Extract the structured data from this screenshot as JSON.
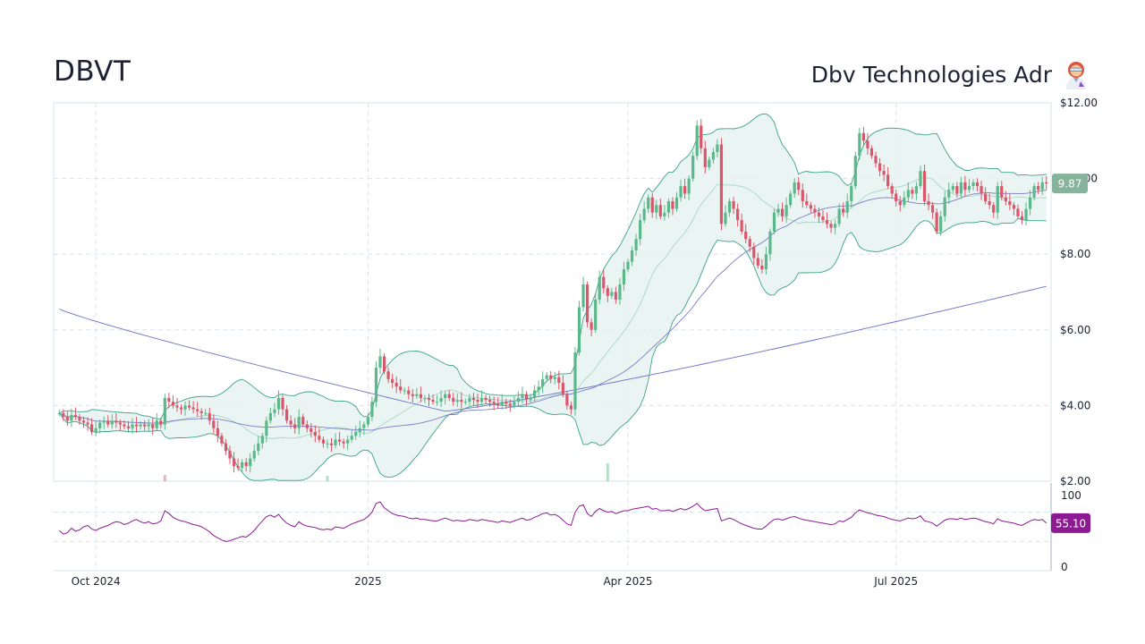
{
  "header": {
    "ticker": "DBVT",
    "company": "Dbv Technologies Adr"
  },
  "icons": {
    "company_emoji": "woman-scientist-icon"
  },
  "colors": {
    "up": "#5ab88a",
    "down": "#d9566b",
    "band_fill": "#e6f3f1",
    "band_line": "#3aa387",
    "ma_fast": "#7c7cc8",
    "ma_slow": "#6a72c4",
    "rsi": "#8d1a93",
    "price_badge": "#86b49a",
    "rsi_badge": "#8d1a93",
    "grid": "#d6e4ec"
  },
  "price_axis": {
    "ticks": [
      {
        "value": 12,
        "label": "$12.00"
      },
      {
        "value": 10,
        "label": "$10.00"
      },
      {
        "value": 8,
        "label": "$8.00"
      },
      {
        "value": 6,
        "label": "$6.00"
      },
      {
        "value": 4,
        "label": "$4.00"
      },
      {
        "value": 2,
        "label": "$2.00"
      }
    ],
    "last_price_label": "9.87"
  },
  "rsi_axis": {
    "ticks": [
      {
        "value": 100,
        "label": "100"
      },
      {
        "value": 0,
        "label": "0"
      }
    ],
    "last_rsi_label": "55.10"
  },
  "date_axis": {
    "ticks": [
      {
        "label": "Oct 2024",
        "index": 9
      },
      {
        "label": "2025",
        "index": 76
      },
      {
        "label": "Apr 2025",
        "index": 140
      },
      {
        "label": "Jul 2025",
        "index": 206
      }
    ]
  },
  "chart_data": {
    "type": "candlestick",
    "title": "",
    "x_range_days": 265,
    "ylim": [
      2,
      12
    ],
    "close": [
      3.8,
      3.7,
      3.6,
      3.75,
      3.7,
      3.6,
      3.55,
      3.5,
      3.3,
      3.4,
      3.55,
      3.6,
      3.5,
      3.6,
      3.55,
      3.5,
      3.45,
      3.4,
      3.5,
      3.45,
      3.5,
      3.45,
      3.5,
      3.4,
      3.6,
      3.5,
      4.2,
      4.1,
      4.0,
      3.95,
      3.9,
      4.0,
      3.95,
      3.9,
      3.85,
      3.8,
      3.8,
      3.6,
      3.4,
      3.2,
      3.0,
      2.8,
      2.6,
      2.4,
      2.35,
      2.5,
      2.4,
      2.6,
      2.8,
      3.0,
      3.2,
      3.6,
      3.8,
      3.9,
      4.2,
      3.9,
      3.6,
      3.5,
      3.4,
      3.7,
      3.5,
      3.4,
      3.3,
      3.2,
      3.1,
      3.0,
      3.0,
      2.95,
      3.1,
      3.05,
      3.0,
      3.1,
      3.2,
      3.3,
      3.4,
      3.5,
      3.7,
      4.1,
      5.0,
      5.3,
      4.9,
      4.7,
      4.6,
      4.5,
      4.4,
      4.4,
      4.3,
      4.25,
      4.3,
      4.2,
      4.2,
      4.15,
      4.1,
      4.1,
      4.2,
      4.3,
      4.2,
      4.1,
      4.15,
      4.1,
      4.1,
      4.2,
      4.15,
      4.1,
      4.2,
      4.15,
      4.1,
      4.05,
      4.0,
      4.1,
      4.05,
      4.0,
      4.1,
      4.2,
      4.3,
      4.15,
      4.2,
      4.4,
      4.5,
      4.7,
      4.8,
      4.7,
      4.75,
      4.6,
      4.3,
      4.0,
      3.9,
      5.4,
      6.6,
      7.2,
      6.2,
      6.0,
      6.8,
      7.4,
      7.1,
      6.9,
      7.0,
      6.8,
      7.2,
      7.6,
      7.8,
      8.1,
      8.4,
      8.9,
      9.2,
      9.5,
      9.1,
      9.3,
      9.0,
      9.1,
      9.4,
      9.2,
      9.5,
      9.8,
      9.6,
      10.0,
      10.6,
      11.4,
      10.8,
      10.3,
      10.5,
      10.7,
      10.9,
      8.8,
      9.1,
      9.4,
      9.2,
      8.9,
      8.6,
      8.4,
      8.2,
      7.9,
      7.7,
      7.6,
      8.0,
      8.6,
      9.1,
      9.2,
      9.0,
      9.3,
      9.6,
      9.9,
      9.7,
      9.4,
      9.3,
      9.2,
      9.1,
      9.0,
      8.9,
      8.8,
      8.7,
      8.8,
      9.2,
      9.1,
      9.4,
      9.8,
      10.6,
      11.2,
      11.0,
      10.8,
      10.6,
      10.4,
      10.2,
      10.1,
      9.8,
      9.6,
      9.4,
      9.3,
      9.5,
      9.7,
      9.6,
      9.8,
      10.2,
      9.4,
      9.3,
      9.1,
      8.6,
      9.0,
      9.5,
      9.7,
      9.8,
      9.6,
      9.9,
      9.7,
      9.8,
      9.9,
      9.8,
      9.6,
      9.4,
      9.3,
      9.1,
      9.8,
      9.5,
      9.4,
      9.3,
      9.2,
      9.0,
      8.9,
      9.2,
      9.5,
      9.8,
      9.7,
      9.9,
      9.87
    ],
    "volume_spikes": [
      {
        "index": 26,
        "rel": 0.35
      },
      {
        "index": 66,
        "rel": 0.3
      },
      {
        "index": 135,
        "rel": 1.0
      }
    ],
    "rsi": {
      "values": [
        45,
        40,
        42,
        48,
        44,
        46,
        50,
        52,
        47,
        45,
        48,
        50,
        52,
        55,
        57,
        56,
        53,
        55,
        58,
        60,
        57,
        55,
        57,
        54,
        55,
        58,
        72,
        68,
        63,
        60,
        58,
        57,
        55,
        53,
        52,
        50,
        47,
        43,
        38,
        35,
        32,
        30,
        31,
        33,
        35,
        37,
        36,
        40,
        45,
        52,
        58,
        64,
        66,
        63,
        67,
        60,
        55,
        52,
        50,
        57,
        53,
        51,
        50,
        49,
        47,
        46,
        47,
        46,
        50,
        49,
        48,
        51,
        54,
        56,
        58,
        60,
        64,
        70,
        82,
        84,
        76,
        72,
        68,
        66,
        65,
        64,
        62,
        61,
        62,
        60,
        60,
        59,
        58,
        58,
        60,
        62,
        60,
        58,
        59,
        58,
        58,
        60,
        59,
        58,
        60,
        59,
        58,
        57,
        56,
        58,
        57,
        56,
        58,
        60,
        62,
        59,
        60,
        63,
        65,
        68,
        69,
        66,
        67,
        64,
        59,
        54,
        52,
        70,
        78,
        80,
        68,
        64,
        71,
        75,
        72,
        70,
        71,
        68,
        70,
        72,
        72,
        74,
        75,
        76,
        77,
        78,
        74,
        75,
        72,
        72,
        73,
        71,
        73,
        75,
        73,
        75,
        78,
        82,
        76,
        72,
        73,
        74,
        75,
        58,
        60,
        62,
        60,
        57,
        54,
        52,
        50,
        48,
        47,
        47,
        51,
        56,
        60,
        61,
        59,
        61,
        63,
        64,
        62,
        60,
        59,
        58,
        57,
        56,
        55,
        54,
        53,
        54,
        58,
        57,
        60,
        63,
        69,
        73,
        71,
        69,
        68,
        66,
        65,
        64,
        62,
        60,
        59,
        58,
        60,
        62,
        61,
        62,
        65,
        58,
        57,
        55,
        51,
        55,
        59,
        61,
        61,
        60,
        62,
        60,
        61,
        62,
        61,
        59,
        57,
        56,
        54,
        61,
        58,
        57,
        56,
        55,
        53,
        52,
        55,
        58,
        60,
        59,
        60,
        55.1
      ],
      "overbought": 70,
      "oversold": 30
    }
  }
}
